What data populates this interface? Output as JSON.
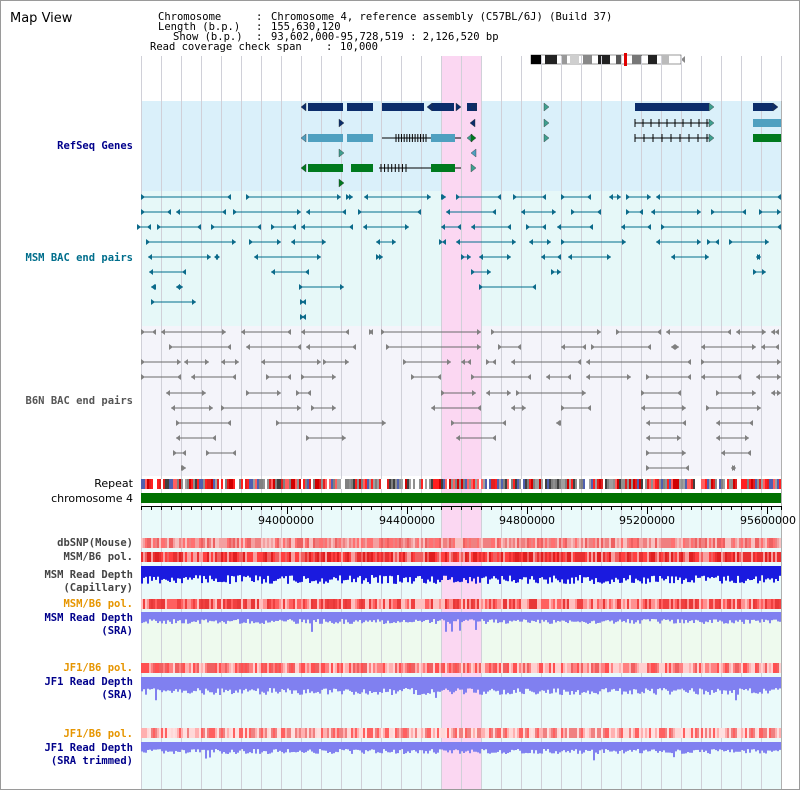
{
  "app": {
    "title": "Map View"
  },
  "header": {
    "chromosome_label": "Chromosome",
    "chromosome_value": "Chromosome 4, reference assembly (C57BL/6J) (Build 37)",
    "length_label": "Length (b.p.)",
    "length_value": "155,630,120",
    "show_label": "Show (b.p.)",
    "show_value": "93,602,000-95,728,519 : 2,126,520 bp",
    "coverage_label": "Read coverage check span",
    "coverage_value": "10,000"
  },
  "tracks": {
    "refseq": "RefSeq Genes",
    "msm_bac": "MSM BAC end pairs",
    "b6n_bac": "B6N BAC end pairs",
    "repeat": "Repeat",
    "chromosome": "chromosome 4",
    "dbsnp": "dbSNP(Mouse)",
    "msm_b6_pol_1": "MSM/B6 pol.",
    "msm_read_depth_cap_1": "MSM Read Depth",
    "msm_read_depth_cap_2": "(Capillary)",
    "msm_b6_pol_2": "MSM/B6 pol.",
    "msm_read_depth_sra_1": "MSM Read Depth",
    "msm_read_depth_sra_2": "(SRA)",
    "jf1_b6_pol_1": "JF1/B6 pol.",
    "jf1_read_depth_sra_1": "JF1 Read Depth",
    "jf1_read_depth_sra_2": "(SRA)",
    "jf1_b6_pol_2": "JF1/B6 pol.",
    "jf1_read_depth_trim_1": "JF1 Read Depth",
    "jf1_read_depth_trim_2": "(SRA trimmed)"
  },
  "axis": {
    "ticks": [
      "94000000",
      "94400000",
      "94800000",
      "95200000",
      "95600000"
    ]
  },
  "colors": {
    "refseq_bg": "#daf0fa",
    "msm_bg": "#e6f8f8",
    "b6n_bg": "#f4f4fa",
    "highlight": "#fbd7f2",
    "refseq_label": "#00008b",
    "msm_label": "#006e8c",
    "b6n_label": "#555555",
    "orange_label": "#e69500",
    "blue_label": "#00008b",
    "chromosome_green": "#007000",
    "depth_capillary": "#1a1adf",
    "depth_sra": "#8080f0"
  },
  "icons": {
    "ideogram": "chromosome-ideogram"
  }
}
